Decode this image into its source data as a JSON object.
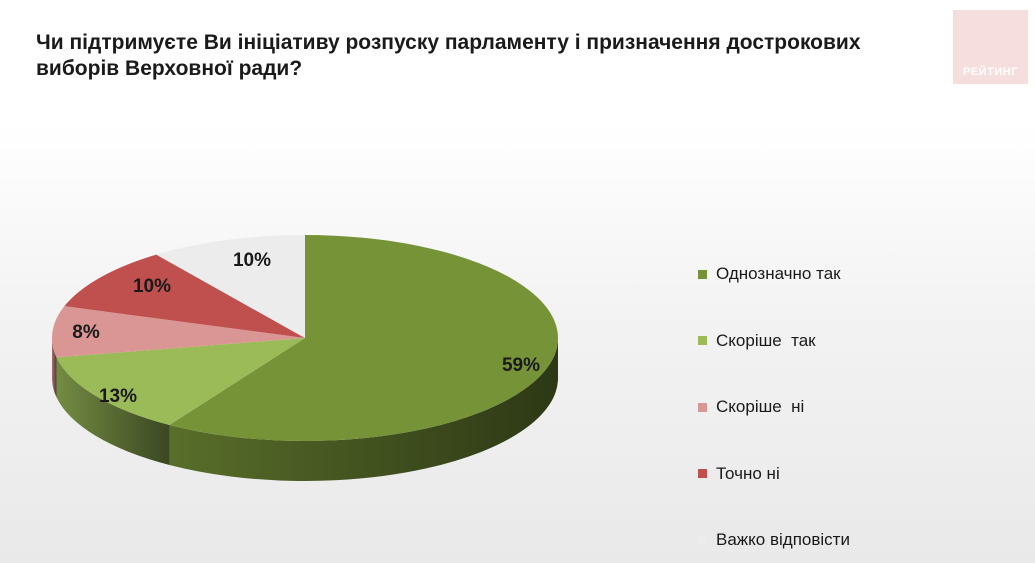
{
  "chart_data": {
    "type": "pie",
    "title": "Чи підтримуєте Ви ініціативу розпуску парламенту і призначення дострокових\nвиборів Верховної ради?",
    "series": [
      {
        "name": "Однозначно так",
        "value": 59,
        "label": "59%",
        "color": "#779338"
      },
      {
        "name": "Скоріше  так",
        "value": 13,
        "label": "13%",
        "color": "#9bbb59"
      },
      {
        "name": "Скоріше  ні",
        "value": 8,
        "label": "8%",
        "color": "#d99694"
      },
      {
        "name": "Точно ні",
        "value": 10,
        "label": "10%",
        "color": "#c0504d"
      },
      {
        "name": "Важко відповісти",
        "value": 10,
        "label": "10%",
        "color": "#ececec"
      }
    ],
    "legend_position": "right",
    "style": "3d-tilted"
  },
  "logo": {
    "text": "РЕЙТИНГ"
  }
}
